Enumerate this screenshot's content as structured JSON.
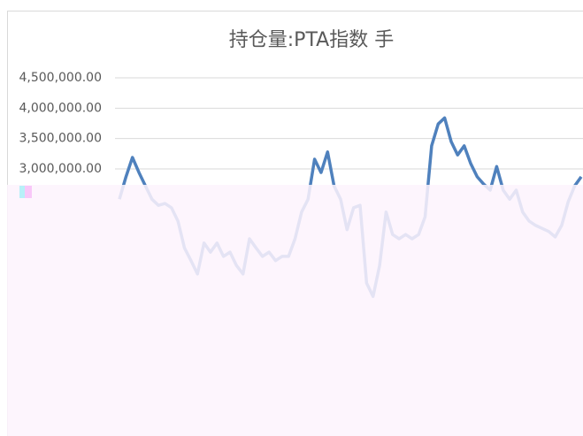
{
  "chart_data": {
    "type": "line",
    "title": "持仓量:PTA指数 手",
    "color": "#4f81bd",
    "grid": true,
    "ylim": [
      0,
      4500000
    ],
    "yticks": [
      {
        "value": 3000000,
        "label": "3,000,000.00"
      },
      {
        "value": 3500000,
        "label": "3,500,000.00"
      },
      {
        "value": 4000000,
        "label": "4,000,000.00"
      },
      {
        "value": 4500000,
        "label": "4,500,000.00"
      }
    ],
    "values": [
      2500000,
      2870000,
      3190000,
      2940000,
      2720000,
      2500000,
      2400000,
      2430000,
      2360000,
      2140000,
      1700000,
      1490000,
      1270000,
      1780000,
      1630000,
      1780000,
      1560000,
      1630000,
      1410000,
      1270000,
      1850000,
      1700000,
      1560000,
      1630000,
      1490000,
      1560000,
      1560000,
      1850000,
      2290000,
      2500000,
      3160000,
      2940000,
      3280000,
      2720000,
      2500000,
      2000000,
      2360000,
      2400000,
      1120000,
      900000,
      1410000,
      2290000,
      1920000,
      1850000,
      1920000,
      1850000,
      1920000,
      2210000,
      3380000,
      3740000,
      3840000,
      3450000,
      3230000,
      3380000,
      3090000,
      2870000,
      2750000,
      2650000,
      3040000,
      2650000,
      2500000,
      2650000,
      2290000,
      2140000,
      2070000,
      2020000,
      1970000,
      1880000,
      2070000,
      2460000,
      2720000,
      2870000
    ]
  }
}
